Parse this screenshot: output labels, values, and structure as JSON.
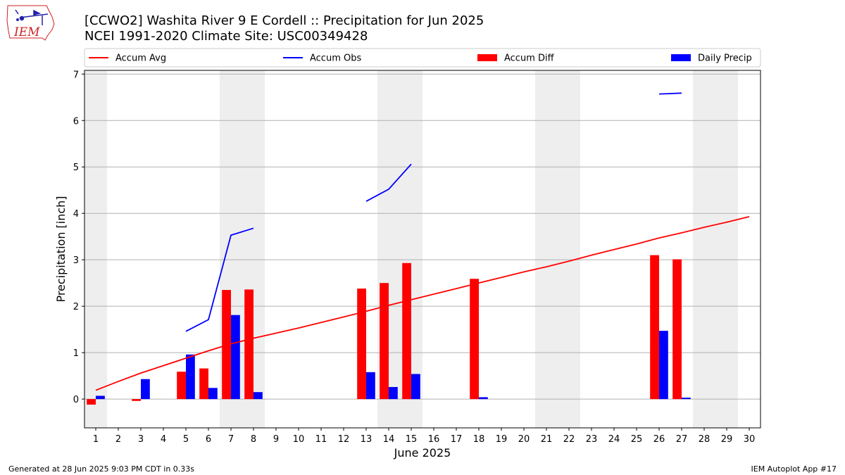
{
  "header": {
    "title_line1": "[CCWO2] Washita River 9 E Cordell :: Precipitation for Jun 2025",
    "title_line2": "NCEI 1991-2020 Climate Site: USC00349428"
  },
  "logo": {
    "text": "IEM"
  },
  "footer": {
    "left": "Generated at 28 Jun 2025 9:03 PM CDT in 0.33s",
    "right": "IEM Autoplot App #17"
  },
  "chart_data": {
    "type": "bar",
    "xlabel": "June 2025",
    "ylabel": "Precipitation [inch]",
    "xlim": [
      0.5,
      30.5
    ],
    "ylim": [
      -0.62,
      7.08
    ],
    "yticks": [
      0,
      1,
      2,
      3,
      4,
      5,
      6,
      7
    ],
    "xticks": [
      1,
      2,
      3,
      4,
      5,
      6,
      7,
      8,
      9,
      10,
      11,
      12,
      13,
      14,
      15,
      16,
      17,
      18,
      19,
      20,
      21,
      22,
      23,
      24,
      25,
      26,
      27,
      28,
      29,
      30
    ],
    "grid": "horizontal",
    "legend_position": "top",
    "weekend_shading_days": [
      [
        0.5,
        1.5
      ],
      [
        6.5,
        8.5
      ],
      [
        13.5,
        15.5
      ],
      [
        20.5,
        22.5
      ],
      [
        27.5,
        29.5
      ]
    ],
    "colors": {
      "avg": "#ff0000",
      "obs": "#0000ff",
      "diff": "#ff0000",
      "daily": "#0000ff",
      "shade": "#eeeeee",
      "grid": "#b0b0b0"
    },
    "legend": [
      {
        "label": "Accum Avg",
        "kind": "line",
        "color": "#ff0000"
      },
      {
        "label": "Accum Obs",
        "kind": "line",
        "color": "#0000ff"
      },
      {
        "label": "Accum Diff",
        "kind": "bar",
        "color": "#ff0000"
      },
      {
        "label": "Daily Precip",
        "kind": "bar",
        "color": "#0000ff"
      }
    ],
    "series": [
      {
        "name": "Accum Avg",
        "type": "line",
        "x": [
          1,
          2,
          3,
          4,
          5,
          6,
          7,
          8,
          9,
          10,
          11,
          12,
          13,
          14,
          15,
          16,
          17,
          18,
          19,
          20,
          21,
          22,
          23,
          24,
          25,
          26,
          27,
          28,
          29,
          30
        ],
        "values": [
          0.19,
          0.38,
          0.56,
          0.72,
          0.88,
          1.04,
          1.19,
          1.31,
          1.42,
          1.53,
          1.65,
          1.77,
          1.89,
          2.02,
          2.14,
          2.26,
          2.38,
          2.5,
          2.62,
          2.74,
          2.85,
          2.97,
          3.1,
          3.22,
          3.34,
          3.47,
          3.58,
          3.7,
          3.81,
          3.93
        ]
      },
      {
        "name": "Accum Obs",
        "type": "line",
        "segments": [
          {
            "x": [
              5,
              6,
              7,
              8
            ],
            "values": [
              1.46,
              1.71,
              3.53,
              3.68
            ]
          },
          {
            "x": [
              13,
              14,
              15
            ],
            "values": [
              4.26,
              4.52,
              5.06
            ]
          },
          {
            "x": [
              26,
              27
            ],
            "values": [
              6.57,
              6.59
            ]
          }
        ]
      },
      {
        "name": "Accum Diff",
        "type": "bar",
        "x": [
          1,
          3,
          5,
          6,
          7,
          8,
          13,
          14,
          15,
          18,
          26,
          27
        ],
        "values": [
          -0.12,
          -0.04,
          0.59,
          0.66,
          2.35,
          2.36,
          2.38,
          2.5,
          2.93,
          2.59,
          3.1,
          3.01
        ]
      },
      {
        "name": "Daily Precip",
        "type": "bar",
        "x": [
          1,
          3,
          5,
          6,
          7,
          8,
          13,
          14,
          15,
          18,
          26,
          27
        ],
        "values": [
          0.07,
          0.43,
          0.96,
          0.24,
          1.81,
          0.15,
          0.58,
          0.26,
          0.54,
          0.04,
          1.47,
          0.03
        ]
      }
    ]
  }
}
